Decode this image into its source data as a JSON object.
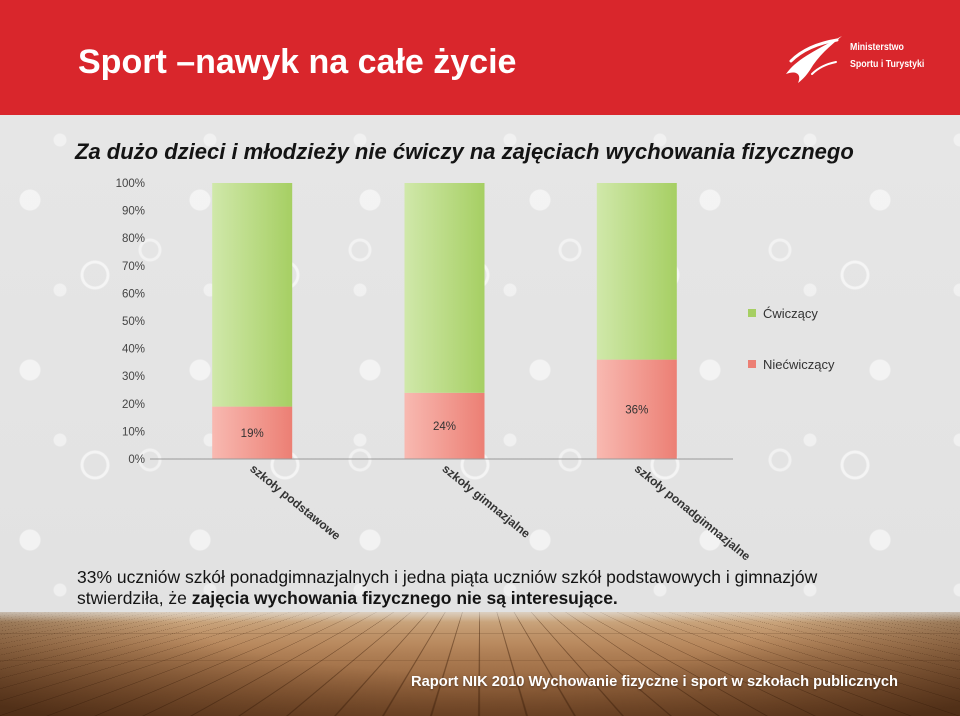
{
  "header": {
    "title": "Sport –nawyk na całe życie",
    "background_color": "#d9262c",
    "logo": {
      "icon": "ministry-flame-logo",
      "line1": "Ministerstwo",
      "line2": "Sportu i Turystyki"
    }
  },
  "chart_data": {
    "type": "bar",
    "stacked": true,
    "normalized_to_100_percent": true,
    "title": "Za dużo dzieci i młodzieży nie ćwiczy na zajęciach wychowania fizycznego",
    "xlabel": "",
    "ylabel": "",
    "categories": [
      "szkoły podstawowe",
      "szkoły gimnazjalne",
      "szkoły ponadgimnazjalne"
    ],
    "series": [
      {
        "name": "Niećwiczący",
        "values": [
          19,
          24,
          36
        ],
        "data_labels": [
          "19%",
          "24%",
          "36%"
        ],
        "color": "#ec7f74",
        "color_highlight": "#f8b9b1"
      },
      {
        "name": "Ćwiczący",
        "values": [
          81,
          76,
          64
        ],
        "color": "#a6cf63",
        "color_highlight": "#d0e8aa"
      }
    ],
    "ylim": [
      0,
      100
    ],
    "yticks": [
      0,
      10,
      20,
      30,
      40,
      50,
      60,
      70,
      80,
      90,
      100
    ],
    "ytick_labels": [
      "0%",
      "10%",
      "20%",
      "30%",
      "40%",
      "50%",
      "60%",
      "70%",
      "80%",
      "90%",
      "100%"
    ],
    "grid": false,
    "legend": "right",
    "axis_color": "#9a9a9a"
  },
  "caption": {
    "line1": "33% uczniów szkół ponadgimnazjalnych i jedna piąta uczniów szkół podstawowych i gimnazjów",
    "line2_regular": "stwierdziła, że",
    "line2_bold": "zajęcia wychowania fizycznego nie są interesujące."
  },
  "footer": {
    "text": "Raport NIK 2010 Wychowanie fizyczne i sport w szkołach publicznych"
  }
}
